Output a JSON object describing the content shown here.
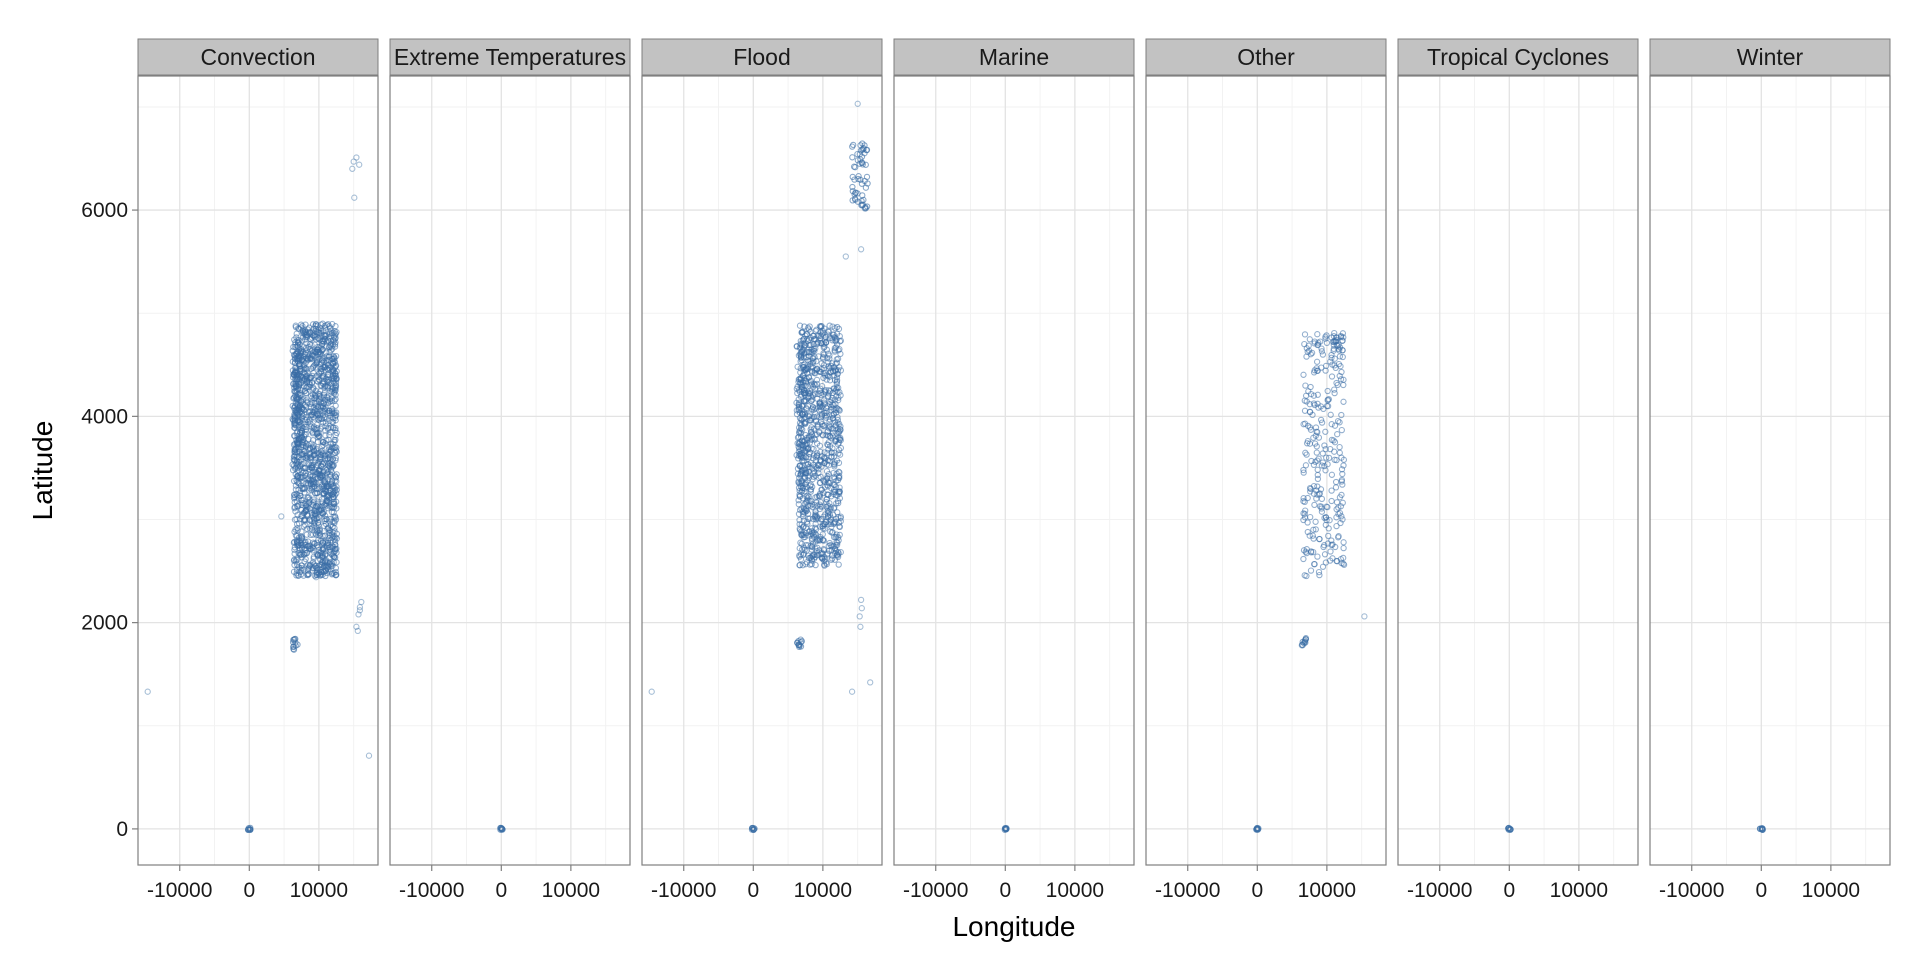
{
  "chart_data": {
    "type": "scatter",
    "facet_by": "event category",
    "facets": [
      "Convection",
      "Extreme Temperatures",
      "Flood",
      "Marine",
      "Other",
      "Tropical Cyclones",
      "Winter"
    ],
    "xlabel": "Longitude",
    "ylabel": "Latitude",
    "xlim": [
      -16000,
      18500
    ],
    "ylim": [
      -350,
      7300
    ],
    "xticks": [
      -10000,
      0,
      10000
    ],
    "xtick_labels": [
      "-10000",
      "0",
      "10000"
    ],
    "xticks_minor": [
      -5000,
      5000,
      15000
    ],
    "yticks": [
      0,
      2000,
      4000,
      6000
    ],
    "ytick_labels": [
      "0",
      "2000",
      "4000",
      "6000"
    ],
    "yticks_minor": [
      1000,
      3000,
      5000,
      7000
    ],
    "grid": true,
    "legend": "none",
    "point_color": "#3a6ea5",
    "point_style": "hollow circle, semi-transparent",
    "points": {
      "Convection": {
        "singles": [
          [
            -14600,
            1330
          ],
          [
            4600,
            3030
          ],
          [
            9600,
            2440
          ],
          [
            14800,
            6400
          ],
          [
            15000,
            6470
          ],
          [
            15400,
            6510
          ],
          [
            15800,
            6440
          ],
          [
            15100,
            6120
          ],
          [
            17200,
            710
          ],
          [
            15400,
            1960
          ],
          [
            15700,
            2080
          ],
          [
            15900,
            2150
          ],
          [
            16100,
            2200
          ],
          [
            15600,
            1920
          ],
          [
            15900,
            2120
          ]
        ],
        "clusters": [
          {
            "x": [
              6300,
              7000
            ],
            "y": [
              1730,
              1850
            ],
            "n": 12
          },
          {
            "x": [
              -200,
              200
            ],
            "y": [
              -10,
              10
            ],
            "n": 10
          }
        ],
        "dense_regions": [
          {
            "x": [
              6400,
              12600
            ],
            "y": [
              2450,
              4900
            ],
            "n": 1400
          },
          {
            "x": [
              6200,
              7600
            ],
            "y": [
              3400,
              4750
            ],
            "n": 120
          }
        ]
      },
      "Extreme Temperatures": {
        "singles": [],
        "clusters": [
          {
            "x": [
              -200,
              200
            ],
            "y": [
              -10,
              10
            ],
            "n": 10
          }
        ],
        "dense_regions": []
      },
      "Flood": {
        "singles": [
          [
            -14600,
            1330
          ],
          [
            14200,
            1330
          ],
          [
            16800,
            1420
          ],
          [
            13300,
            5550
          ],
          [
            15500,
            5620
          ],
          [
            15000,
            7030
          ],
          [
            15500,
            2220
          ],
          [
            15300,
            2060
          ],
          [
            15400,
            1960
          ],
          [
            15600,
            2140
          ]
        ],
        "clusters": [
          {
            "x": [
              6300,
              7000
            ],
            "y": [
              1760,
              1850
            ],
            "n": 12
          },
          {
            "x": [
              14200,
              16600
            ],
            "y": [
              6000,
              6650
            ],
            "n": 55
          },
          {
            "x": [
              -200,
              200
            ],
            "y": [
              -10,
              10
            ],
            "n": 10
          }
        ],
        "dense_regions": [
          {
            "x": [
              6500,
              12600
            ],
            "y": [
              2550,
              4880
            ],
            "n": 900
          },
          {
            "x": [
              6200,
              7600
            ],
            "y": [
              3300,
              4700
            ],
            "n": 90
          }
        ]
      },
      "Marine": {
        "singles": [],
        "clusters": [
          {
            "x": [
              -200,
              200
            ],
            "y": [
              -10,
              10
            ],
            "n": 10
          }
        ],
        "dense_regions": []
      },
      "Other": {
        "singles": [
          [
            15400,
            2060
          ],
          [
            6400,
            1780
          ]
        ],
        "clusters": [
          {
            "x": [
              6300,
              7000
            ],
            "y": [
              1780,
              1850
            ],
            "n": 10
          },
          {
            "x": [
              -200,
              200
            ],
            "y": [
              -10,
              10
            ],
            "n": 10
          }
        ],
        "dense_regions": [
          {
            "x": [
              6600,
              12500
            ],
            "y": [
              2450,
              4800
            ],
            "n": 260
          },
          {
            "x": [
              10600,
              12400
            ],
            "y": [
              4500,
              4850
            ],
            "n": 25
          }
        ]
      },
      "Tropical Cyclones": {
        "singles": [],
        "clusters": [
          {
            "x": [
              -200,
              200
            ],
            "y": [
              -10,
              10
            ],
            "n": 10
          }
        ],
        "dense_regions": []
      },
      "Winter": {
        "singles": [],
        "clusters": [
          {
            "x": [
              -200,
              200
            ],
            "y": [
              -10,
              10
            ],
            "n": 10
          }
        ],
        "dense_regions": []
      }
    }
  }
}
